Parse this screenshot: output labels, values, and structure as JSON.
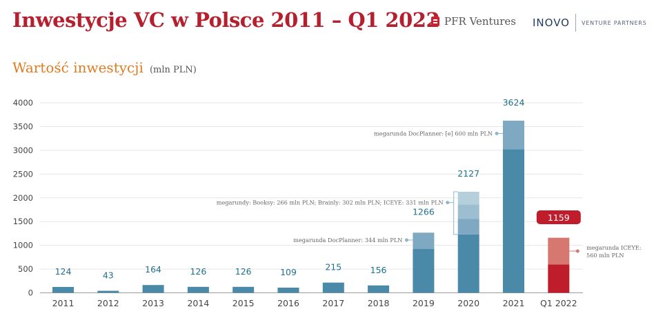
{
  "header": {
    "title": "Inwestycje VC w Polsce 2011 – Q1 2022",
    "brand_pfr": "PFR Ventures",
    "brand_inovo": "INOVO",
    "brand_inovo_tag": "VENTURE PARTNERS"
  },
  "subtitle": {
    "main": "Wartość inwestycji",
    "unit": "(mln PLN)"
  },
  "colors": {
    "bar": "#4a8aa8",
    "bar_light1": "#7fa9c2",
    "bar_light2": "#9dbdd0",
    "bar_light3": "#b6cfdd",
    "q1_base": "#c01d2c",
    "q1_top": "#d6786f",
    "value_text": "#1f6f8f",
    "title": "#b5202e",
    "subtitle": "#e07b1e"
  },
  "chart_data": {
    "type": "bar",
    "categories": [
      "2011",
      "2012",
      "2013",
      "2014",
      "2015",
      "2016",
      "2017",
      "2018",
      "2019",
      "2020",
      "2021",
      "Q1 2022"
    ],
    "values": [
      124,
      43,
      164,
      126,
      126,
      109,
      215,
      156,
      1266,
      2127,
      3624,
      1159
    ],
    "value_labels": [
      "124",
      "43",
      "164",
      "126",
      "126",
      "109",
      "215",
      "156",
      "1266",
      "2127",
      "3624",
      "1159"
    ],
    "segments": {
      "2019": [
        {
          "value": 922,
          "kind": "base"
        },
        {
          "value": 344,
          "kind": "megaround"
        }
      ],
      "2020": [
        {
          "value": 1228,
          "kind": "base"
        },
        {
          "value": 331,
          "kind": "megaround"
        },
        {
          "value": 302,
          "kind": "megaround"
        },
        {
          "value": 266,
          "kind": "megaround"
        }
      ],
      "2021": [
        {
          "value": 3024,
          "kind": "base"
        },
        {
          "value": 600,
          "kind": "megaround"
        }
      ],
      "Q1 2022": [
        {
          "value": 599,
          "kind": "base"
        },
        {
          "value": 560,
          "kind": "megaround"
        }
      ]
    },
    "annotations": [
      {
        "category": "2019",
        "text": "megarunda DocPlanner: 344 mln PLN"
      },
      {
        "category": "2020",
        "text": "megarundy: Booksy: 266 mln PLN; Brainly: 302 mln PLN; ICEYE: 331 mln PLN"
      },
      {
        "category": "2021",
        "text": "megarunda DocPlanner: [e] 600 mln PLN"
      },
      {
        "category": "Q1 2022",
        "text_lines": [
          "megarunda ICEYE:",
          "560 mln PLN"
        ]
      }
    ],
    "yticks": [
      0,
      500,
      1000,
      1500,
      2000,
      2500,
      3000,
      3500,
      4000
    ],
    "ylim": [
      0,
      4000
    ],
    "grid": true,
    "xlabel": "",
    "ylabel": ""
  }
}
